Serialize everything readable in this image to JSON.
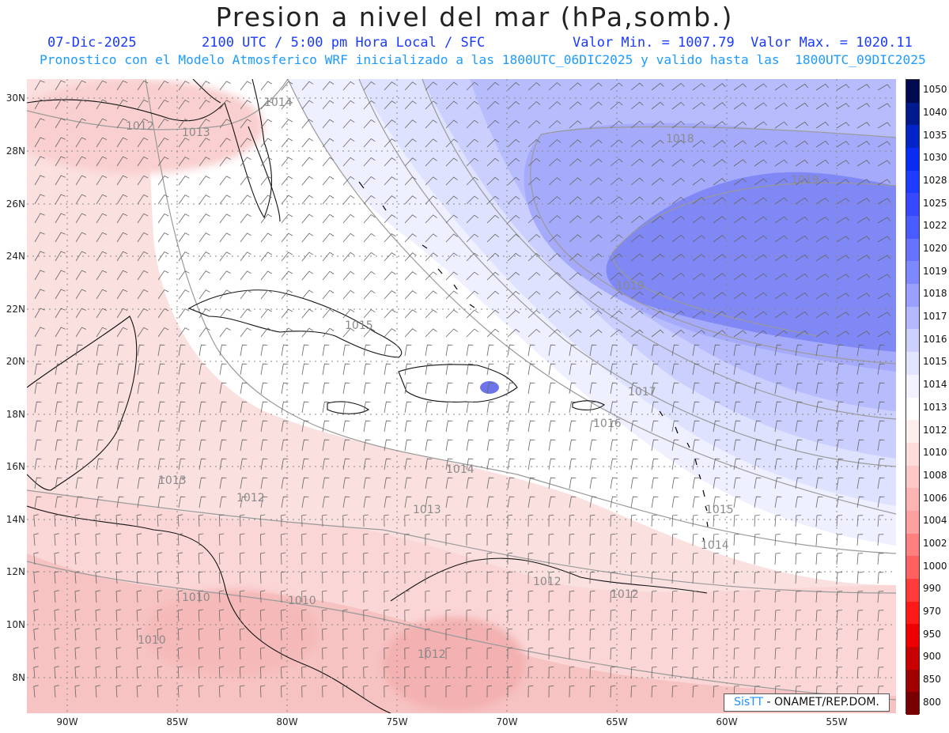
{
  "title": "Presion a nivel del mar (hPa,somb.)",
  "header": {
    "date": "07-Dic-2025",
    "time": "2100 UTC / 5:00 pm Hora Local / SFC",
    "min_max": "Valor Min. = 1007.79  Valor Max. = 1020.11",
    "model_info": "Pronostico con el Modelo Atmosferico WRF inicializado a las 1800UTC_06DIC2025 y valido hasta las  1800UTC_09DIC2025"
  },
  "lat_labels": [
    "30N",
    "28N",
    "26N",
    "24N",
    "22N",
    "20N",
    "18N",
    "16N",
    "14N",
    "12N",
    "10N",
    "8N"
  ],
  "lon_labels": [
    "90W",
    "85W",
    "80W",
    "75W",
    "70W",
    "65W",
    "60W",
    "55W"
  ],
  "contour_labels": [
    {
      "text": "1014"
    },
    {
      "text": "1012"
    },
    {
      "text": "1013"
    },
    {
      "text": "1018"
    },
    {
      "text": "1019"
    },
    {
      "text": "1019"
    },
    {
      "text": "1015"
    },
    {
      "text": "1017"
    },
    {
      "text": "1016"
    },
    {
      "text": "1014"
    },
    {
      "text": "1013"
    },
    {
      "text": "1012"
    },
    {
      "text": "1015"
    },
    {
      "text": "1014"
    },
    {
      "text": "1013"
    },
    {
      "text": "1012"
    },
    {
      "text": "1010"
    },
    {
      "text": "1010"
    },
    {
      "text": "1012"
    },
    {
      "text": "1010"
    },
    {
      "text": "1012"
    }
  ],
  "colorbar": {
    "levels": [
      "1050",
      "1040",
      "1035",
      "1030",
      "1028",
      "1025",
      "1022",
      "1020",
      "1019",
      "1018",
      "1017",
      "1016",
      "1015",
      "1014",
      "1013",
      "1012",
      "1010",
      "1008",
      "1006",
      "1004",
      "1002",
      "1000",
      "990",
      "970",
      "950",
      "900",
      "850",
      "800"
    ],
    "colors": [
      "#000a50",
      "#001a8c",
      "#0024c8",
      "#0a2cf0",
      "#1e3cff",
      "#3848ff",
      "#4b5cff",
      "#6673ff",
      "#7e88ff",
      "#9aa0ff",
      "#b4b8ff",
      "#cdd0ff",
      "#e1e3ff",
      "#f2f3ff",
      "#ffffff",
      "#ffeeee",
      "#ffdcdc",
      "#ffc8c8",
      "#ffb4b4",
      "#ffa0a0",
      "#ff8080",
      "#ff6060",
      "#ff3c3c",
      "#ff1a1a",
      "#ee0000",
      "#c80000",
      "#a00000",
      "#780000"
    ]
  },
  "credit": {
    "logo": "SisTT",
    "text": " - ONAMET/REP.DOM."
  }
}
